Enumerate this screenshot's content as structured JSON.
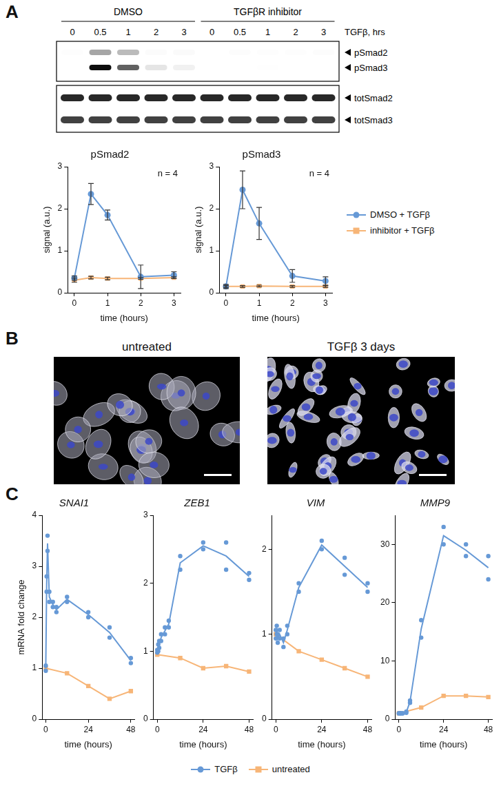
{
  "panel_labels": [
    "A",
    "B",
    "C"
  ],
  "blot": {
    "treatments": [
      "DMSO",
      "TGFβR inhibitor"
    ],
    "lanes": [
      "0",
      "0.5",
      "1",
      "2",
      "3",
      "0",
      "0.5",
      "1",
      "2",
      "3"
    ],
    "lane_title": "TGFβ, hrs",
    "phospho_bands": [
      "pSmad2",
      "pSmad3"
    ],
    "total_bands": [
      "totSmad2",
      "totSmad3"
    ]
  },
  "images": {
    "titles": [
      "untreated",
      "TGFβ 3 days"
    ]
  },
  "chart_data": [
    {
      "type": "line",
      "title": "pSmad2",
      "xlabel": "time (hours)",
      "ylabel": "signal (a.u.)",
      "annotation": "n = 4",
      "xlim": [
        -0.2,
        3.2
      ],
      "xticks": [
        0,
        1,
        2,
        3
      ],
      "ylim": [
        0,
        3
      ],
      "yticks": [
        0,
        1,
        2,
        3
      ],
      "grid": false,
      "series": [
        {
          "name": "DMSO + TGFβ",
          "color": "#6699d6",
          "marker": "circle",
          "x": [
            0,
            0.5,
            1,
            2,
            3
          ],
          "values": [
            0.35,
            2.35,
            1.85,
            0.38,
            0.42
          ],
          "errors": [
            0.05,
            0.25,
            0.12,
            0.28,
            0.08
          ]
        },
        {
          "name": "inhibitor + TGFβ",
          "color": "#f7b577",
          "marker": "square",
          "x": [
            0,
            0.5,
            1,
            2,
            3
          ],
          "values": [
            0.3,
            0.36,
            0.34,
            0.34,
            0.36
          ],
          "errors": [
            0.05,
            0.03,
            0.03,
            0.02,
            0.02
          ]
        }
      ]
    },
    {
      "type": "line",
      "title": "pSmad3",
      "xlabel": "time (hours)",
      "ylabel": "signal (a.u.)",
      "annotation": "n = 4",
      "xlim": [
        -0.2,
        3.2
      ],
      "xticks": [
        0,
        1,
        2,
        3
      ],
      "ylim": [
        0,
        3
      ],
      "yticks": [
        0,
        1,
        2,
        3
      ],
      "grid": false,
      "legend": "right",
      "series": [
        {
          "name": "DMSO + TGFβ",
          "color": "#6699d6",
          "marker": "circle",
          "x": [
            0,
            0.5,
            1,
            2,
            3
          ],
          "values": [
            0.15,
            2.45,
            1.65,
            0.4,
            0.28
          ],
          "errors": [
            0.05,
            0.45,
            0.38,
            0.15,
            0.1
          ]
        },
        {
          "name": "inhibitor + TGFβ",
          "color": "#f7b577",
          "marker": "square",
          "x": [
            0,
            0.5,
            1,
            2,
            3
          ],
          "values": [
            0.15,
            0.15,
            0.16,
            0.15,
            0.15
          ],
          "errors": [
            0.02,
            0.02,
            0.02,
            0.02,
            0.02
          ]
        }
      ]
    },
    {
      "type": "line",
      "title": "SNAI1",
      "xlabel": "time (hours)",
      "ylabel": "mRNA fold change",
      "xlim": [
        -2,
        50
      ],
      "xticks": [
        0,
        24,
        48
      ],
      "ylim": [
        0,
        4
      ],
      "yticks": [
        0,
        1,
        2,
        3,
        4
      ],
      "grid": false,
      "series": [
        {
          "name": "TGFβ",
          "color": "#6699d6",
          "marker": "circle",
          "x": [
            0,
            0.5,
            1,
            2,
            4,
            6,
            12,
            24,
            36,
            48
          ],
          "values": [
            1.0,
            2.65,
            3.45,
            2.4,
            2.25,
            2.15,
            2.35,
            2.05,
            1.7,
            1.15
          ],
          "replicates": [
            [
              1.05,
              2.8,
              3.6,
              2.5,
              2.3,
              2.2,
              2.4,
              2.1,
              1.8,
              1.1
            ],
            [
              0.95,
              2.5,
              3.3,
              2.3,
              2.2,
              2.1,
              2.3,
              2.0,
              1.6,
              1.2
            ]
          ]
        },
        {
          "name": "untreated",
          "color": "#f7b577",
          "marker": "square",
          "x": [
            0,
            12,
            24,
            36,
            48
          ],
          "values": [
            1.0,
            0.9,
            0.65,
            0.4,
            0.55
          ]
        }
      ]
    },
    {
      "type": "line",
      "title": "ZEB1",
      "xlabel": "time (hours)",
      "xlim": [
        -2,
        50
      ],
      "xticks": [
        0,
        24,
        48
      ],
      "ylim": [
        0,
        3
      ],
      "yticks": [
        0,
        1,
        2,
        3
      ],
      "grid": false,
      "series": [
        {
          "name": "TGFβ",
          "color": "#6699d6",
          "marker": "circle",
          "x": [
            0,
            0.5,
            1,
            2,
            4,
            6,
            12,
            24,
            36,
            48
          ],
          "values": [
            1.0,
            1.05,
            1.1,
            1.2,
            1.3,
            1.4,
            2.3,
            2.55,
            2.4,
            2.1
          ],
          "replicates": [
            [
              1.02,
              1.1,
              1.15,
              1.25,
              1.35,
              1.45,
              2.4,
              2.6,
              2.6,
              2.15
            ],
            [
              0.98,
              1.0,
              1.05,
              1.15,
              1.25,
              1.35,
              2.2,
              2.5,
              2.2,
              2.05
            ]
          ]
        },
        {
          "name": "untreated",
          "color": "#f7b577",
          "marker": "square",
          "x": [
            0,
            12,
            24,
            36,
            48
          ],
          "values": [
            0.95,
            0.9,
            0.75,
            0.78,
            0.7
          ]
        }
      ]
    },
    {
      "type": "line",
      "title": "VIM",
      "xlabel": "time (hours)",
      "xlim": [
        -2,
        50
      ],
      "xticks": [
        0,
        24,
        48
      ],
      "ylim": [
        0,
        2.4
      ],
      "yticks": [
        0,
        1,
        2
      ],
      "grid": false,
      "series": [
        {
          "name": "TGFβ",
          "color": "#6699d6",
          "marker": "circle",
          "x": [
            0,
            0.5,
            1,
            2,
            4,
            6,
            12,
            24,
            36,
            48
          ],
          "values": [
            1.0,
            1.05,
            0.95,
            1.0,
            0.9,
            1.05,
            1.55,
            2.05,
            1.8,
            1.55
          ],
          "replicates": [
            [
              1.05,
              1.1,
              1.0,
              1.05,
              0.95,
              1.1,
              1.6,
              2.1,
              1.9,
              1.6
            ],
            [
              0.95,
              1.0,
              0.9,
              0.95,
              0.85,
              1.0,
              1.5,
              2.0,
              1.7,
              1.5
            ]
          ]
        },
        {
          "name": "untreated",
          "color": "#f7b577",
          "marker": "square",
          "x": [
            0,
            12,
            24,
            36,
            48
          ],
          "values": [
            1.0,
            0.8,
            0.7,
            0.6,
            0.5
          ]
        }
      ]
    },
    {
      "type": "line",
      "title": "MMP9",
      "xlabel": "time (hours)",
      "legend": "bottom",
      "xlim": [
        -2,
        50
      ],
      "xticks": [
        0,
        24,
        48
      ],
      "ylim": [
        0,
        35
      ],
      "yticks": [
        0,
        10,
        20,
        30
      ],
      "grid": false,
      "series": [
        {
          "name": "TGFβ",
          "color": "#6699d6",
          "marker": "circle",
          "x": [
            0,
            0.5,
            1,
            2,
            4,
            6,
            12,
            24,
            36,
            48
          ],
          "values": [
            1,
            1,
            1,
            1,
            1.2,
            3,
            15.5,
            31.5,
            29,
            26
          ],
          "replicates": [
            [
              1,
              1,
              1,
              1,
              1.3,
              3.2,
              17,
              33,
              30,
              28
            ],
            [
              1,
              1,
              1,
              1,
              1.1,
              2.8,
              14,
              30,
              28,
              24
            ]
          ]
        },
        {
          "name": "untreated",
          "color": "#f7b577",
          "marker": "square",
          "x": [
            0,
            12,
            24,
            36,
            48
          ],
          "values": [
            1,
            2,
            4,
            4,
            3.8
          ]
        }
      ]
    }
  ]
}
